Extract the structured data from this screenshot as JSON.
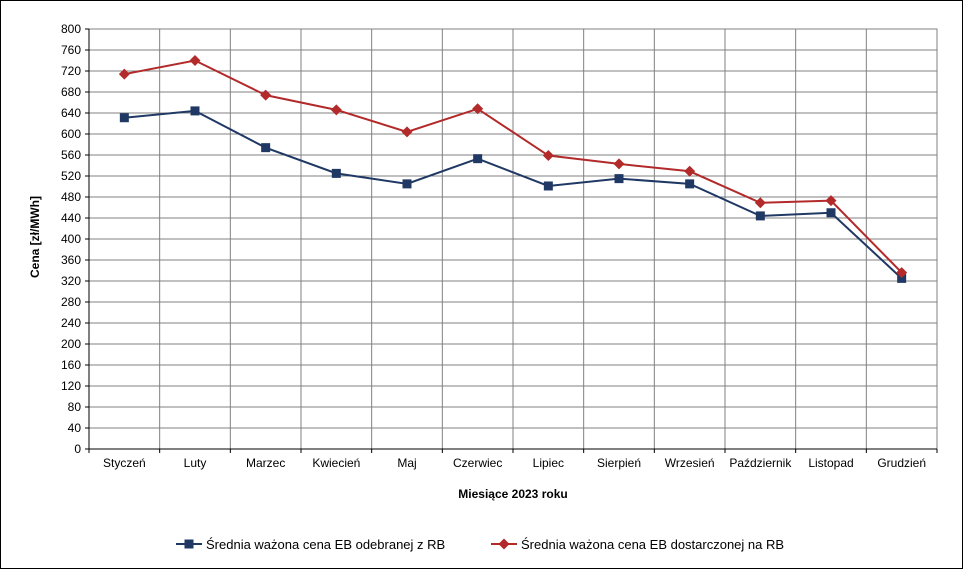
{
  "chart_data": {
    "type": "line",
    "title": "",
    "xlabel": "Miesiące 2023  roku",
    "ylabel": "Cena [zł/MWh]",
    "ylim": [
      0,
      800
    ],
    "ytick_step": 40,
    "categories": [
      "Styczeń",
      "Luty",
      "Marzec",
      "Kwiecień",
      "Maj",
      "Czerwiec",
      "Lipiec",
      "Sierpień",
      "Wrzesień",
      "Październik",
      "Listopad",
      "Grudzień"
    ],
    "series": [
      {
        "name": "Średnia ważona cena EB odebranej z RB",
        "color": "#1f3864",
        "marker": "square",
        "values": [
          631,
          644,
          574,
          525,
          505,
          553,
          501,
          515,
          505,
          444,
          450,
          325
        ]
      },
      {
        "name": "Średnia ważona cena EB dostarczonej na RB",
        "color": "#b22a2a",
        "marker": "diamond",
        "values": [
          714,
          740,
          674,
          646,
          604,
          648,
          559,
          543,
          529,
          469,
          473,
          336
        ]
      }
    ],
    "grid": true,
    "legend_position": "bottom"
  }
}
